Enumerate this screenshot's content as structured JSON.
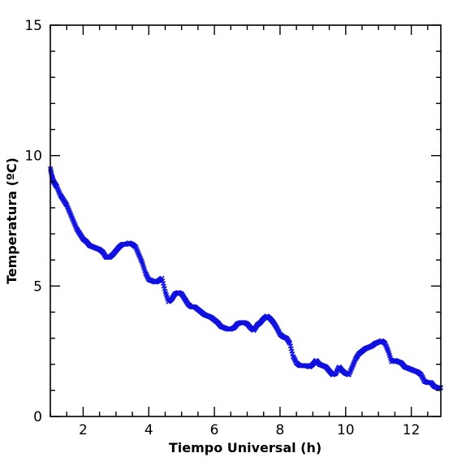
{
  "chart_data": {
    "type": "scatter",
    "title": "",
    "xlabel": "Tiempo Universal (h)",
    "ylabel": "Temperatura (ºC)",
    "xlim": [
      1,
      12.9
    ],
    "ylim": [
      0,
      15
    ],
    "xticks": [
      2,
      4,
      6,
      8,
      10,
      12
    ],
    "yticks": [
      0,
      5,
      10,
      15
    ],
    "marker": "x",
    "grid": false,
    "color": "#1010e0",
    "series": [
      {
        "x": [
          1.0,
          1.05,
          1.1,
          1.15,
          1.2,
          1.3,
          1.4,
          1.5,
          1.6,
          1.7,
          1.8,
          1.9,
          2.0,
          2.1,
          2.2,
          2.3,
          2.4,
          2.5,
          2.6,
          2.7,
          2.8,
          2.9,
          3.0,
          3.1,
          3.2,
          3.3,
          3.4,
          3.5,
          3.6,
          3.7,
          3.8,
          3.9,
          4.0,
          4.1,
          4.2,
          4.3,
          4.4,
          4.5,
          4.6,
          4.7,
          4.8,
          4.9,
          5.0,
          5.1,
          5.2,
          5.3,
          5.4,
          5.5,
          5.6,
          5.7,
          5.8,
          5.9,
          6.0,
          6.1,
          6.2,
          6.3,
          6.4,
          6.5,
          6.6,
          6.7,
          6.8,
          6.9,
          7.0,
          7.1,
          7.2,
          7.3,
          7.4,
          7.5,
          7.6,
          7.7,
          7.8,
          7.9,
          8.0,
          8.1,
          8.2,
          8.3,
          8.4,
          8.5,
          8.6,
          8.7,
          8.8,
          8.9,
          9.0,
          9.1,
          9.2,
          9.3,
          9.4,
          9.5,
          9.6,
          9.7,
          9.8,
          9.9,
          10.0,
          10.1,
          10.2,
          10.3,
          10.4,
          10.5,
          10.6,
          10.7,
          10.8,
          10.9,
          11.0,
          11.1,
          11.2,
          11.3,
          11.4,
          11.5,
          11.6,
          11.7,
          11.8,
          11.9,
          12.0,
          12.1,
          12.2,
          12.3,
          12.4,
          12.5,
          12.6,
          12.7,
          12.8,
          12.9
        ],
        "values": [
          9.5,
          9.2,
          9.0,
          8.9,
          8.8,
          8.5,
          8.3,
          8.1,
          7.8,
          7.5,
          7.2,
          7.0,
          6.8,
          6.7,
          6.55,
          6.5,
          6.45,
          6.4,
          6.3,
          6.1,
          6.1,
          6.2,
          6.35,
          6.5,
          6.6,
          6.6,
          6.65,
          6.6,
          6.5,
          6.2,
          5.9,
          5.5,
          5.25,
          5.2,
          5.15,
          5.2,
          5.3,
          4.8,
          4.4,
          4.5,
          4.7,
          4.75,
          4.7,
          4.5,
          4.3,
          4.2,
          4.2,
          4.1,
          4.0,
          3.9,
          3.85,
          3.8,
          3.7,
          3.6,
          3.45,
          3.4,
          3.35,
          3.35,
          3.4,
          3.55,
          3.6,
          3.6,
          3.55,
          3.4,
          3.3,
          3.5,
          3.6,
          3.75,
          3.85,
          3.75,
          3.6,
          3.4,
          3.15,
          3.05,
          3.0,
          2.8,
          2.3,
          2.05,
          1.95,
          1.95,
          1.95,
          1.9,
          2.0,
          2.15,
          2.0,
          1.95,
          1.9,
          1.75,
          1.6,
          1.65,
          1.9,
          1.75,
          1.65,
          1.6,
          1.9,
          2.2,
          2.4,
          2.5,
          2.6,
          2.65,
          2.7,
          2.8,
          2.85,
          2.9,
          2.8,
          2.5,
          2.1,
          2.15,
          2.1,
          2.05,
          1.9,
          1.85,
          1.8,
          1.75,
          1.7,
          1.6,
          1.35,
          1.3,
          1.3,
          1.15,
          1.1,
          1.1
        ]
      }
    ]
  }
}
